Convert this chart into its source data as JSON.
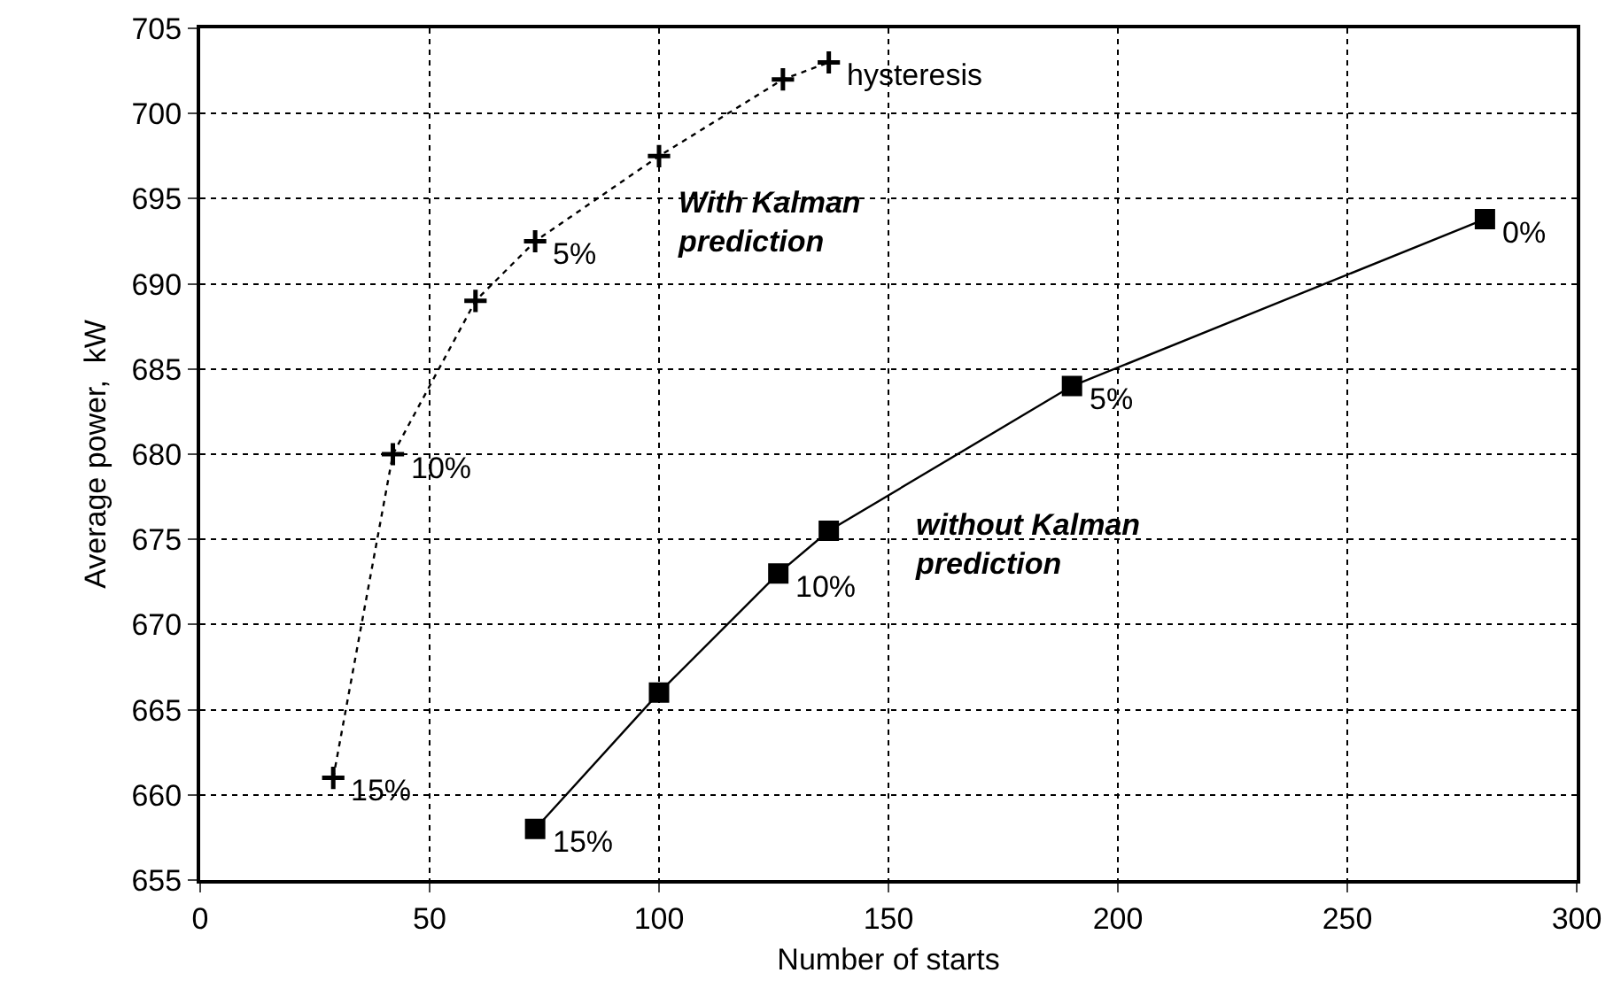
{
  "chart_data": {
    "type": "line",
    "xlabel": "Number of starts",
    "ylabel": "Average power,  kW",
    "xlim": [
      0,
      300
    ],
    "xticks": [
      0,
      50,
      100,
      150,
      200,
      250,
      300
    ],
    "ylim": [
      655,
      705
    ],
    "yticks": [
      655,
      660,
      665,
      670,
      675,
      680,
      685,
      690,
      695,
      700,
      705
    ],
    "grid": true,
    "legend": false,
    "series": [
      {
        "name": "With Kalman prediction",
        "color": "#000000",
        "marker": "cross",
        "line_style": "dotted",
        "x": [
          29,
          42,
          60,
          73,
          100,
          127,
          137
        ],
        "values": [
          661,
          680,
          689,
          692.5,
          697.5,
          702,
          703
        ]
      },
      {
        "name": "without Kalman prediction",
        "color": "#000000",
        "marker": "square",
        "line_style": "solid",
        "x": [
          73,
          100,
          126,
          137,
          190,
          280
        ],
        "values": [
          658,
          666,
          673,
          675.5,
          684,
          693.8
        ]
      }
    ],
    "annotations": [
      {
        "text": "hysteresis",
        "x": 137,
        "y": 703
      },
      {
        "text": "5%",
        "x": 73,
        "y": 692.5
      },
      {
        "text": "10%",
        "x": 42,
        "y": 680
      },
      {
        "text": "15%",
        "x": 29,
        "y": 661
      },
      {
        "text": "15%",
        "x": 73,
        "y": 658
      },
      {
        "text": "10%",
        "x": 126,
        "y": 673
      },
      {
        "text": "5%",
        "x": 190,
        "y": 684
      },
      {
        "text": "0%",
        "x": 280,
        "y": 693.8
      }
    ]
  }
}
